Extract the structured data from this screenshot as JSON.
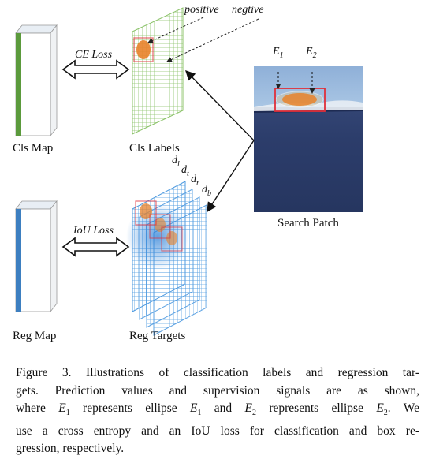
{
  "labels": {
    "cls_map": "Cls Map",
    "cls_labels": "Cls Labels",
    "reg_map": "Reg Map",
    "reg_targets": "Reg Targets",
    "search_patch": "Search Patch",
    "ce_loss": "CE Loss",
    "iou_loss": "IoU Loss",
    "positive": "positive",
    "negative": "negtive",
    "e1": "E",
    "e1_sub": "1",
    "e2": "E",
    "e2_sub": "2",
    "d_l": "d",
    "d_l_sub": "l",
    "d_t": "d",
    "d_t_sub": "t",
    "d_r": "d",
    "d_r_sub": "r",
    "d_b": "d",
    "d_b_sub": "b"
  },
  "caption": {
    "line1": "Figure 3. Illustrations of classification labels and regression tar-",
    "line2": "gets.  Prediction values and supervision signals are as shown,",
    "line3_a": "where ",
    "line3_e1": "E",
    "line3_e1_sub": "1",
    "line3_b": " represents ellipse ",
    "line3_e1b": "E",
    "line3_e1b_sub": "1",
    "line3_c": " and ",
    "line3_e2": "E",
    "line3_e2_sub": "2",
    "line3_d": " represents ellipse ",
    "line3_e2b": "E",
    "line3_e2b_sub": "2",
    "line3_e": ". We",
    "line4": "use a cross entropy and an IoU loss for classification and box re-",
    "line5": "gression, respectively."
  },
  "colors": {
    "cls_map_edge": "#5b9a3c",
    "reg_map_edge": "#3d7fc0",
    "grid_green": "#8cc36a",
    "grid_blue": "#4f9be0",
    "ellipse_orange": "#e8822a",
    "box_red": "#e0303a",
    "sea_dark": "#2a3a66"
  }
}
